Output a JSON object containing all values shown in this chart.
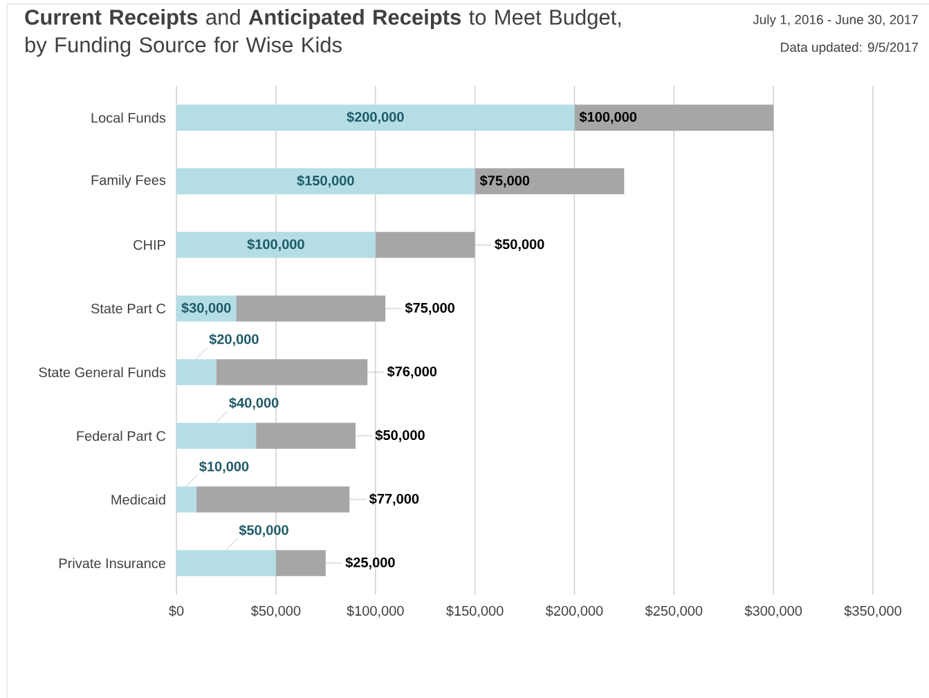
{
  "chart_data": {
    "type": "bar",
    "orientation": "horizontal",
    "stacked": true,
    "title": "**Current Receipts** and **Anticipated Receipts** to Meet Budget, by Funding Source for Wise Kids",
    "annotations": [
      "July 1, 2016 - June 30, 2017",
      "Data updated: 9/5/2017"
    ],
    "categories": [
      "Local Funds",
      "Family Fees",
      "CHIP",
      "State Part C",
      "State General Funds",
      "Federal Part C",
      "Medicaid",
      "Private Insurance"
    ],
    "series": [
      {
        "color": "#b4dde6",
        "values": [
          200000,
          150000,
          100000,
          30000,
          20000,
          40000,
          10000,
          50000
        ],
        "value_labels": [
          "$200,000",
          "$150,000",
          "$100,000",
          "$30,000",
          "$20,000",
          "$40,000",
          "$10,000",
          "$50,000"
        ]
      },
      {
        "color": "#a6a6a6",
        "values": [
          100000,
          75000,
          50000,
          75000,
          76000,
          50000,
          77000,
          25000
        ],
        "value_labels": [
          "$100,000",
          "$75,000",
          "$50,000",
          "$75,000",
          "$76,000",
          "$50,000",
          "$77,000",
          "$25,000"
        ]
      }
    ],
    "xlim": [
      0,
      350000
    ],
    "xticks": [
      {
        "value": 0,
        "label": "$0"
      },
      {
        "value": 50000,
        "label": "$50,000"
      },
      {
        "value": 100000,
        "label": "$100,000"
      },
      {
        "value": 150000,
        "label": "$150,000"
      },
      {
        "value": 200000,
        "label": "$200,000"
      },
      {
        "value": 250000,
        "label": "$250,000"
      },
      {
        "value": 300000,
        "label": "$300,000"
      },
      {
        "value": 350000,
        "label": "$350,000"
      }
    ],
    "grid": "x"
  }
}
